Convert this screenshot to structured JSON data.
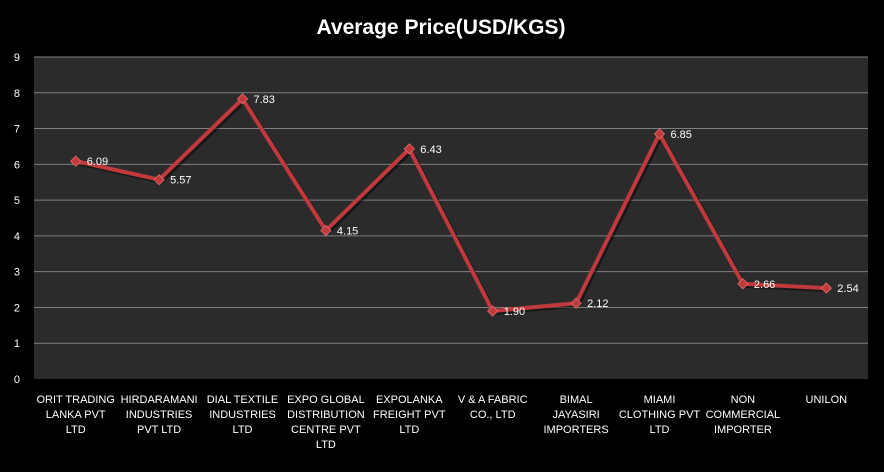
{
  "chart_data": {
    "type": "line",
    "title": "Average Price(USD/KGS)",
    "xlabel": "",
    "ylabel": "",
    "ylim": [
      0,
      9
    ],
    "yticks": [
      "0",
      "1",
      "2",
      "3",
      "4",
      "5",
      "6",
      "7",
      "8",
      "9"
    ],
    "grid": true,
    "legend": "none",
    "categories": [
      [
        "ORIT TRADING",
        "LANKA PVT",
        "LTD"
      ],
      [
        "HIRDARAMANI",
        "INDUSTRIES",
        "PVT LTD"
      ],
      [
        "DIAL TEXTILE",
        "INDUSTRIES",
        "LTD"
      ],
      [
        "EXPO GLOBAL",
        "DISTRIBUTION",
        "CENTRE PVT",
        "LTD"
      ],
      [
        "EXPOLANKA",
        "FREIGHT PVT",
        "LTD"
      ],
      [
        "V & A FABRIC",
        "CO., LTD"
      ],
      [
        "BIMAL",
        "JAYASIRI",
        "IMPORTERS"
      ],
      [
        "MIAMI",
        "CLOTHING PVT",
        "LTD"
      ],
      [
        "NON",
        "COMMERCIAL",
        "IMPORTER"
      ],
      [
        "UNILON"
      ]
    ],
    "series": [
      {
        "values": [
          6.09,
          5.57,
          7.83,
          4.15,
          6.43,
          1.9,
          2.12,
          6.85,
          2.66,
          2.54
        ],
        "labels": [
          "6.09",
          "5.57",
          "7.83",
          "4.15",
          "6.43",
          "1.90",
          "2.12",
          "6.85",
          "2.66",
          "2.54"
        ],
        "color": "#c0393c"
      }
    ],
    "colors": {
      "background": "#000000",
      "plot_area": "#2b2b2b",
      "gridline": "#7f7f7f",
      "text": "#ffffff"
    }
  }
}
